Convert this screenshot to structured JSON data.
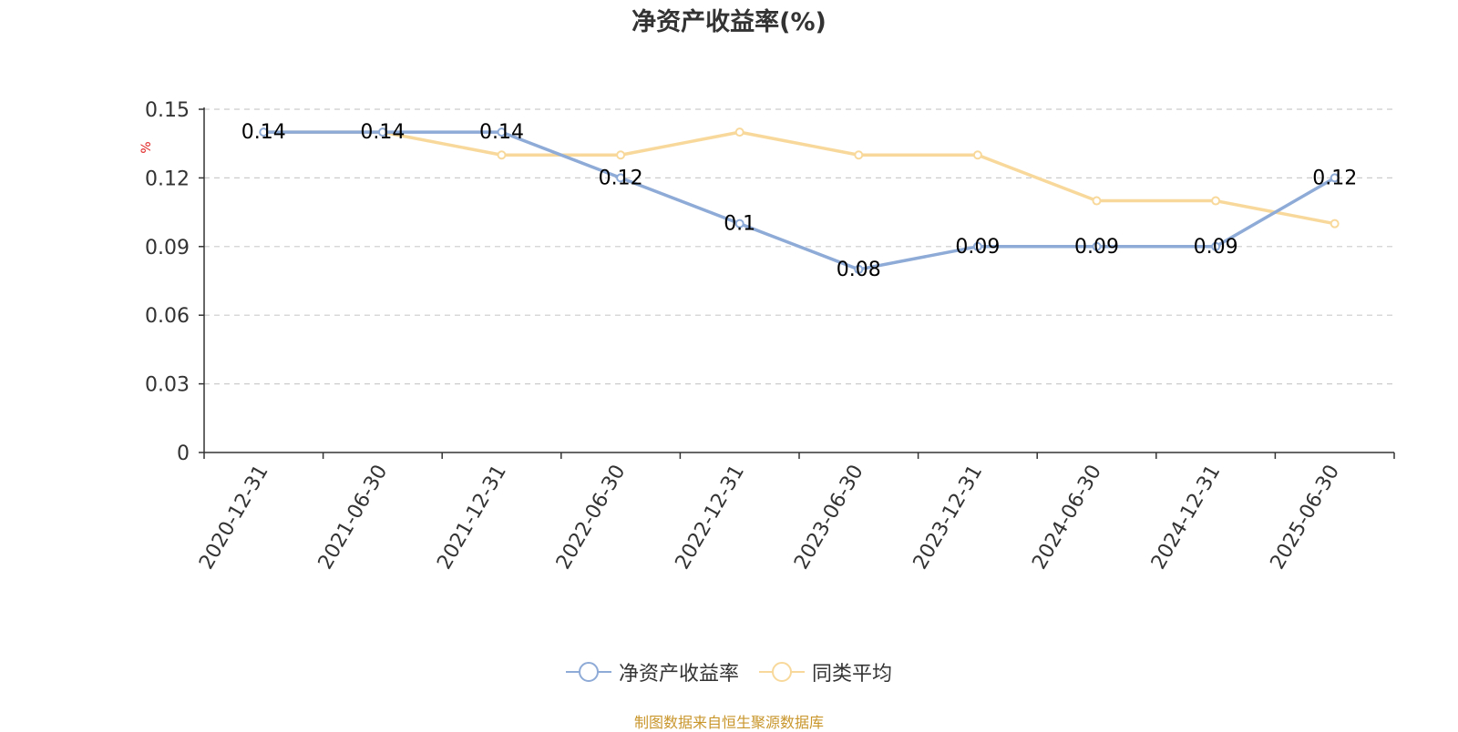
{
  "chart_data": {
    "type": "line",
    "title": "净资产收益率(%)",
    "ylabel": "%",
    "xlabel": "",
    "categories": [
      "2020-12-31",
      "2021-06-30",
      "2021-12-31",
      "2022-06-30",
      "2022-12-31",
      "2023-06-30",
      "2023-12-31",
      "2024-06-30",
      "2024-12-31",
      "2025-06-30"
    ],
    "ylim": [
      0,
      0.15
    ],
    "yticks": [
      "0",
      "0.03",
      "0.06",
      "0.09",
      "0.12",
      "0.15"
    ],
    "grid": true,
    "legend_position": "bottom",
    "series": [
      {
        "name": "净资产收益率",
        "color": "#8eaad6",
        "values": [
          0.14,
          0.14,
          0.14,
          0.12,
          0.1,
          0.08,
          0.09,
          0.09,
          0.09,
          0.12
        ],
        "labels": [
          "0.14",
          "0.14",
          "0.14",
          "0.12",
          "0.1",
          "0.08",
          "0.09",
          "0.09",
          "0.09",
          "0.12"
        ]
      },
      {
        "name": "同类平均",
        "color": "#f8d99b",
        "values": [
          0.14,
          0.14,
          0.13,
          0.13,
          0.14,
          0.13,
          0.13,
          0.11,
          0.11,
          0.1
        ]
      }
    ]
  },
  "source_note": "制图数据来自恒生聚源数据库"
}
